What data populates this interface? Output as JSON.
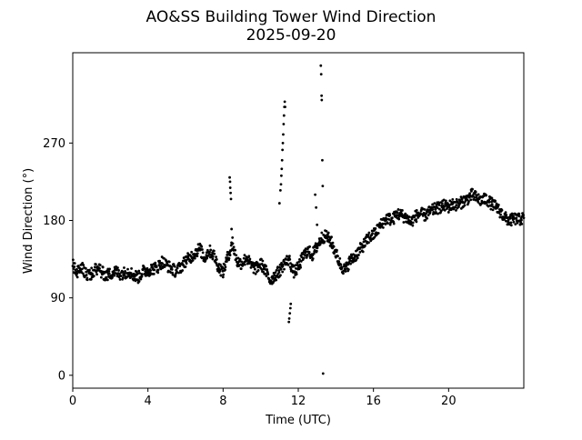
{
  "chart_data": {
    "type": "scatter",
    "title": "AO&SS Building Tower Wind Direction",
    "subtitle": "2025-09-20",
    "xlabel": "Time (UTC)",
    "ylabel": "Wind Direction (°)",
    "xlim": [
      0,
      24
    ],
    "ylim": [
      -15,
      375
    ],
    "xticks": [
      0,
      4,
      8,
      12,
      16,
      20
    ],
    "yticks": [
      0,
      90,
      180,
      270
    ],
    "grid": false,
    "legend": "none",
    "marker_color": "#000000",
    "anchor_points": [
      [
        0.0,
        128
      ],
      [
        0.25,
        120
      ],
      [
        0.5,
        124
      ],
      [
        0.75,
        117
      ],
      [
        1.0,
        118
      ],
      [
        1.25,
        124
      ],
      [
        1.5,
        121
      ],
      [
        1.75,
        116
      ],
      [
        2.0,
        118
      ],
      [
        2.25,
        121
      ],
      [
        2.5,
        118
      ],
      [
        2.75,
        119
      ],
      [
        3.0,
        121
      ],
      [
        3.25,
        116
      ],
      [
        3.5,
        114
      ],
      [
        3.75,
        121
      ],
      [
        4.0,
        122
      ],
      [
        4.25,
        124
      ],
      [
        4.5,
        125
      ],
      [
        4.75,
        132
      ],
      [
        5.0,
        128
      ],
      [
        5.25,
        124
      ],
      [
        5.5,
        121
      ],
      [
        5.75,
        126
      ],
      [
        6.0,
        133
      ],
      [
        6.25,
        137
      ],
      [
        6.5,
        142
      ],
      [
        6.75,
        148
      ],
      [
        7.0,
        136
      ],
      [
        7.25,
        145
      ],
      [
        7.5,
        140
      ],
      [
        7.75,
        126
      ],
      [
        8.0,
        120
      ],
      [
        8.25,
        138
      ],
      [
        8.5,
        152
      ],
      [
        8.75,
        132
      ],
      [
        9.0,
        130
      ],
      [
        9.25,
        137
      ],
      [
        9.5,
        127
      ],
      [
        9.75,
        124
      ],
      [
        10.0,
        130
      ],
      [
        10.25,
        122
      ],
      [
        10.5,
        110
      ],
      [
        10.75,
        116
      ],
      [
        11.0,
        121
      ],
      [
        11.25,
        130
      ],
      [
        11.5,
        135
      ],
      [
        11.75,
        120
      ],
      [
        12.0,
        125
      ],
      [
        12.25,
        138
      ],
      [
        12.5,
        145
      ],
      [
        12.75,
        140
      ],
      [
        13.0,
        150
      ],
      [
        13.25,
        160
      ],
      [
        13.5,
        162
      ],
      [
        13.75,
        155
      ],
      [
        14.0,
        142
      ],
      [
        14.25,
        128
      ],
      [
        14.5,
        122
      ],
      [
        14.75,
        133
      ],
      [
        15.0,
        138
      ],
      [
        15.25,
        145
      ],
      [
        15.5,
        152
      ],
      [
        15.75,
        160
      ],
      [
        16.0,
        163
      ],
      [
        16.25,
        170
      ],
      [
        16.5,
        178
      ],
      [
        16.75,
        183
      ],
      [
        17.0,
        180
      ],
      [
        17.25,
        188
      ],
      [
        17.5,
        186
      ],
      [
        17.75,
        183
      ],
      [
        18.0,
        178
      ],
      [
        18.25,
        185
      ],
      [
        18.5,
        188
      ],
      [
        18.75,
        186
      ],
      [
        19.0,
        190
      ],
      [
        19.25,
        193
      ],
      [
        19.5,
        195
      ],
      [
        19.75,
        197
      ],
      [
        20.0,
        196
      ],
      [
        20.25,
        199
      ],
      [
        20.5,
        198
      ],
      [
        20.75,
        202
      ],
      [
        21.0,
        205
      ],
      [
        21.25,
        210
      ],
      [
        21.5,
        206
      ],
      [
        21.75,
        203
      ],
      [
        22.0,
        205
      ],
      [
        22.25,
        200
      ],
      [
        22.5,
        196
      ],
      [
        22.75,
        190
      ],
      [
        23.0,
        183
      ],
      [
        23.25,
        180
      ],
      [
        23.5,
        182
      ],
      [
        23.75,
        181
      ],
      [
        24.0,
        183
      ]
    ],
    "outliers": [
      [
        8.35,
        230
      ],
      [
        8.37,
        225
      ],
      [
        8.38,
        218
      ],
      [
        8.4,
        212
      ],
      [
        8.42,
        205
      ],
      [
        8.45,
        170
      ],
      [
        8.5,
        160
      ],
      [
        11.0,
        200
      ],
      [
        11.05,
        215
      ],
      [
        11.08,
        222
      ],
      [
        11.1,
        232
      ],
      [
        11.12,
        240
      ],
      [
        11.14,
        250
      ],
      [
        11.16,
        262
      ],
      [
        11.18,
        270
      ],
      [
        11.2,
        280
      ],
      [
        11.22,
        292
      ],
      [
        11.24,
        302
      ],
      [
        11.26,
        312
      ],
      [
        11.28,
        318
      ],
      [
        11.3,
        312
      ],
      [
        11.5,
        62
      ],
      [
        11.52,
        66
      ],
      [
        11.55,
        72
      ],
      [
        11.58,
        78
      ],
      [
        11.6,
        83
      ],
      [
        12.9,
        210
      ],
      [
        12.95,
        195
      ],
      [
        13.0,
        175
      ],
      [
        13.2,
        360
      ],
      [
        13.22,
        350
      ],
      [
        13.24,
        325
      ],
      [
        13.25,
        320
      ],
      [
        13.28,
        250
      ],
      [
        13.3,
        220
      ],
      [
        13.32,
        2
      ]
    ]
  }
}
